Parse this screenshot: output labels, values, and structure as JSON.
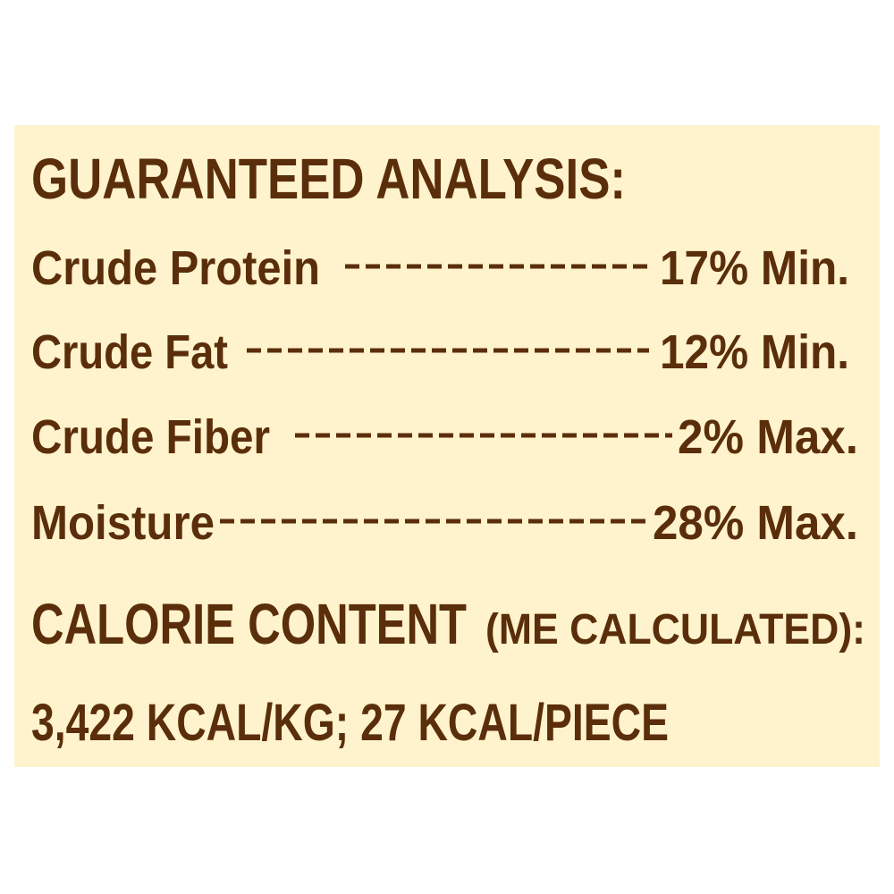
{
  "label": {
    "title": "GUARANTEED ANALYSIS:",
    "rows": [
      {
        "name": "Crude Protein",
        "value": "17% Min."
      },
      {
        "name": "Crude Fat",
        "value": "12% Min."
      },
      {
        "name": "Crude Fiber",
        "value": "2% Max."
      },
      {
        "name": "Moisture",
        "value": "28% Max."
      }
    ],
    "calorie_heading": "CALORIE CONTENT",
    "calorie_note": "(ME CALCULATED):",
    "calorie_values": "3,422 KCAL/KG; 27 KCAL/PIECE"
  }
}
